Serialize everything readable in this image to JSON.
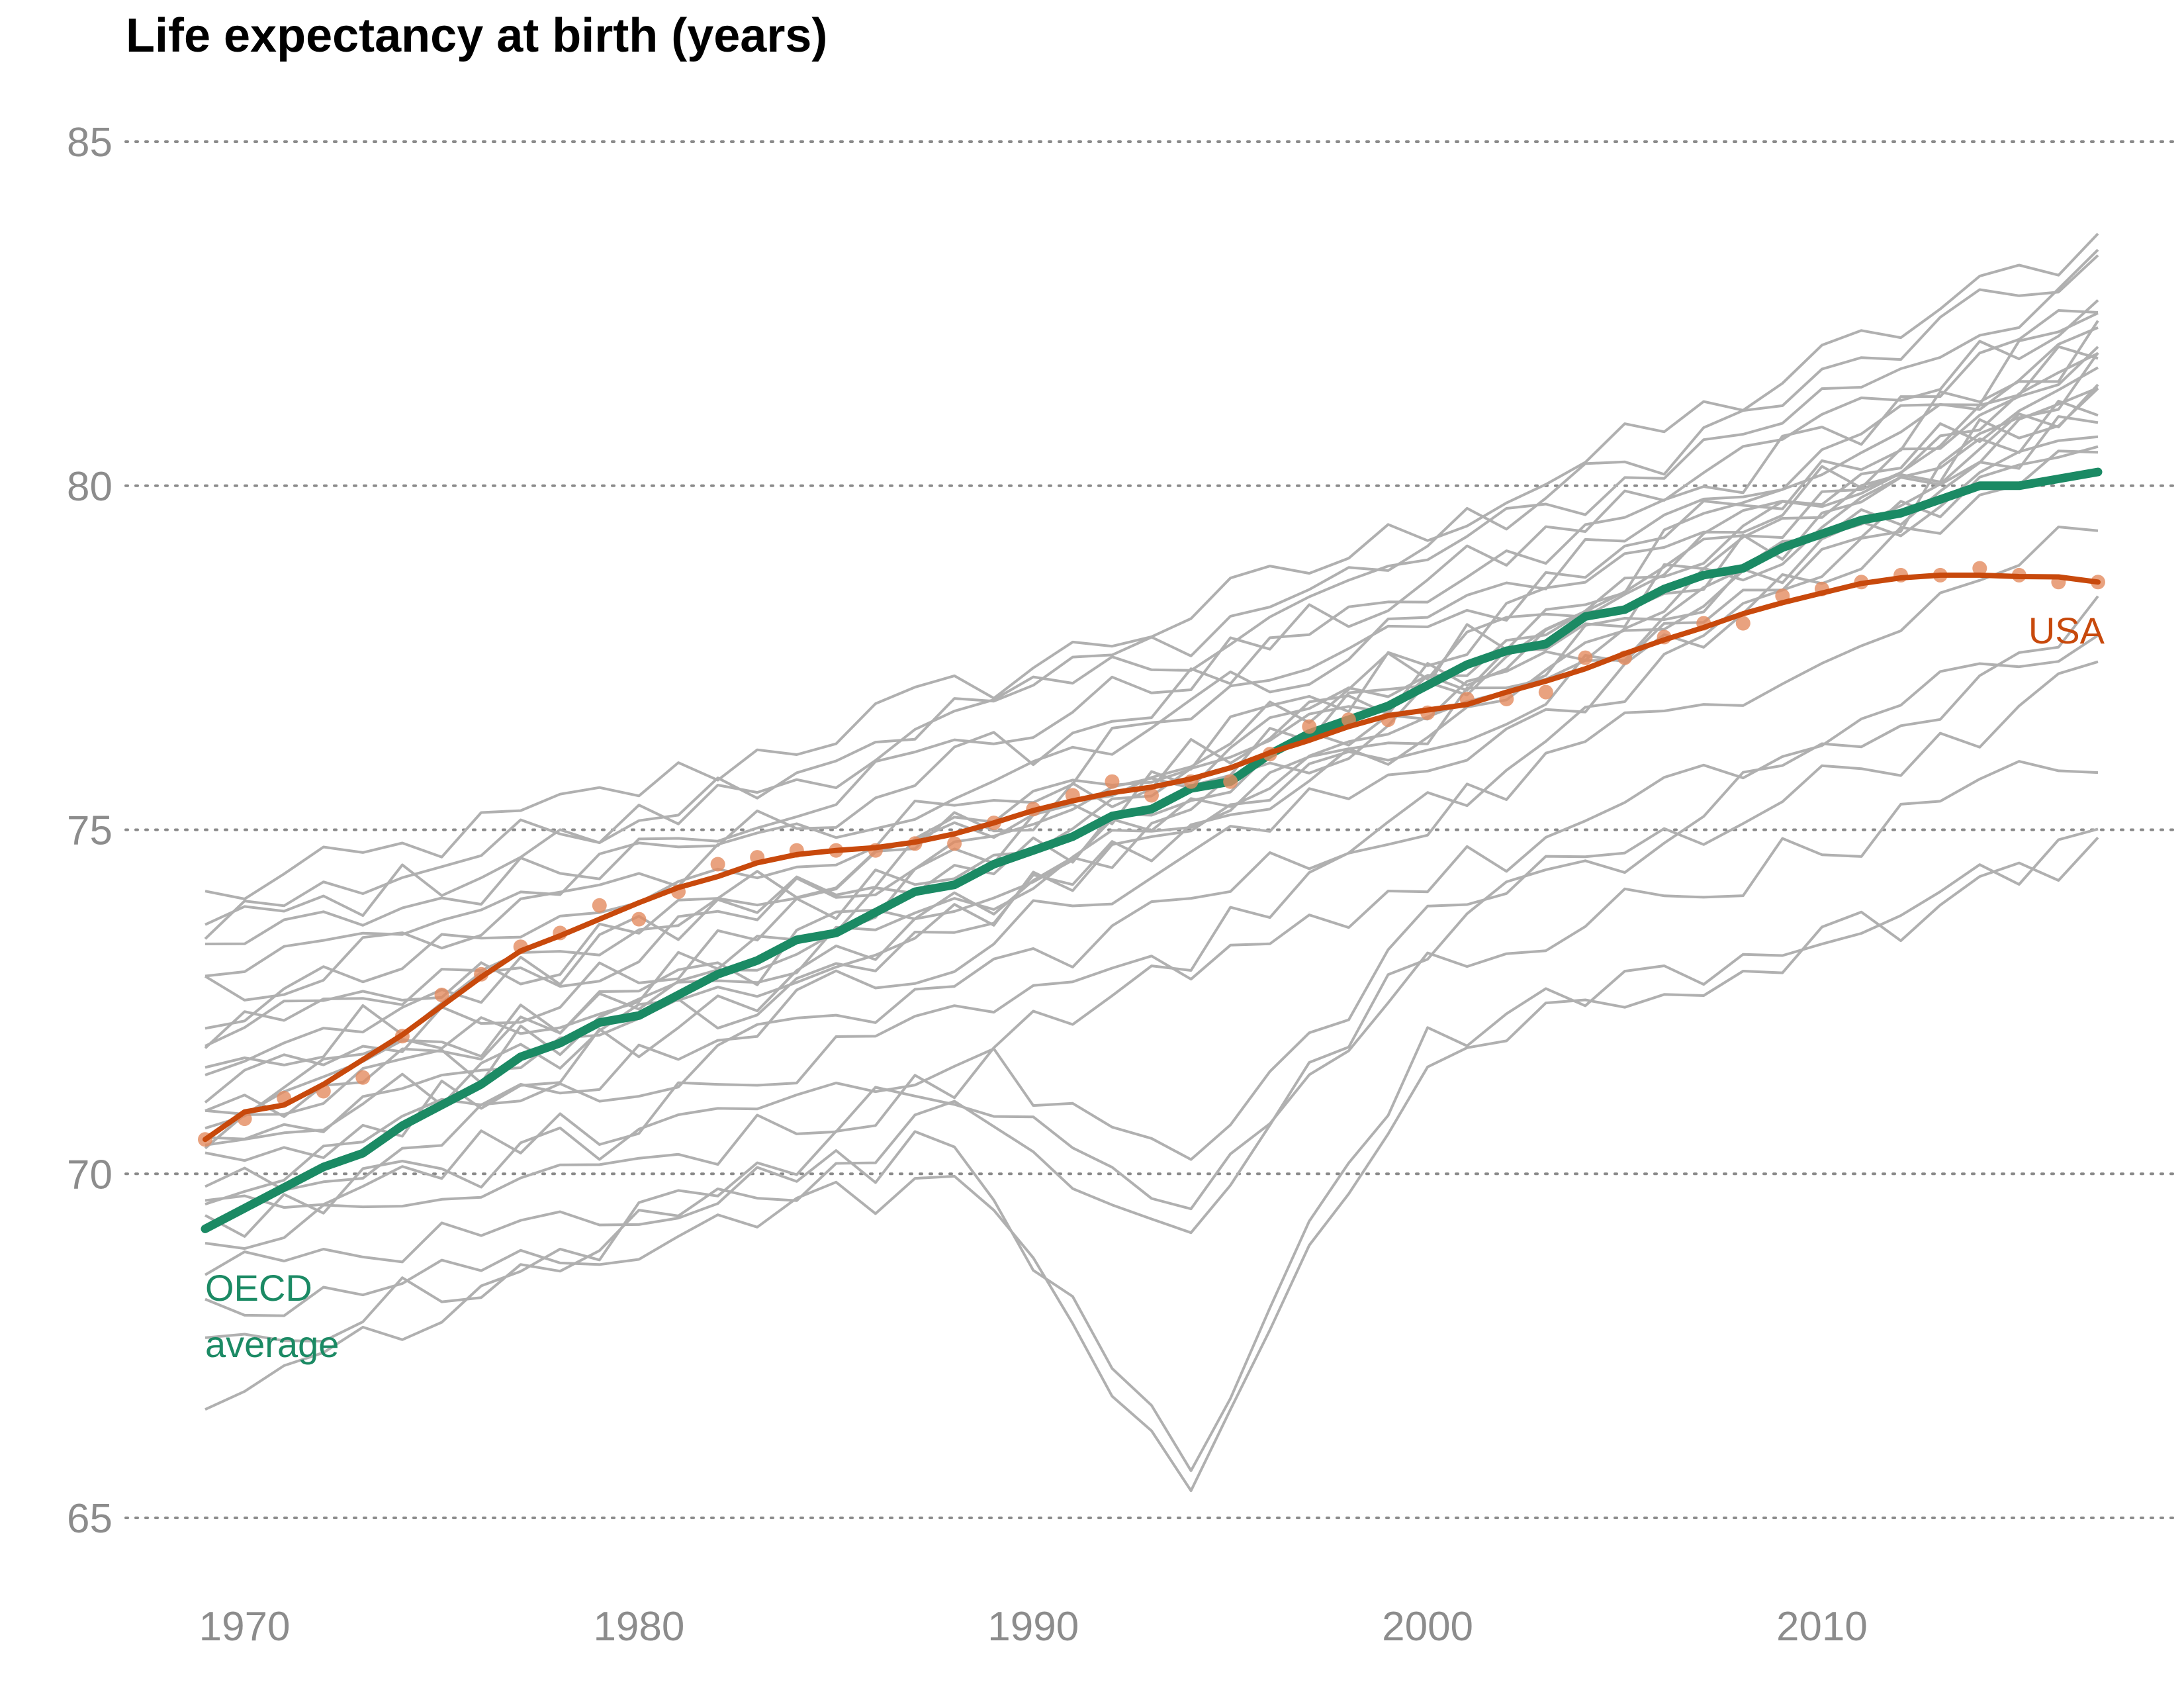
{
  "chart_data": {
    "type": "line",
    "title": "Life expectancy at birth (years)",
    "xlabel": "",
    "ylabel": "",
    "xlim": [
      1969,
      2017
    ],
    "ylim": [
      65,
      85
    ],
    "x_ticks": [
      1970,
      1980,
      1990,
      2000,
      2010
    ],
    "y_ticks": [
      65,
      70,
      75,
      80,
      85
    ],
    "grid": "horizontal dotted",
    "legend": "direct labels",
    "colors": {
      "countries": "#b0b0b0",
      "oecd": "#1b8a64",
      "usa": "#c8490c",
      "usa_points": "#e38b5f"
    },
    "labels": {
      "usa": "USA",
      "oecd_line1": "OECD",
      "oecd_line2": "average"
    },
    "series": [
      {
        "name": "OECD average",
        "x": [
          1969,
          1970,
          1971,
          1972,
          1973,
          1974,
          1975,
          1976,
          1977,
          1978,
          1979,
          1980,
          1981,
          1982,
          1983,
          1984,
          1985,
          1986,
          1987,
          1988,
          1989,
          1990,
          1991,
          1992,
          1993,
          1994,
          1995,
          1996,
          1997,
          1998,
          1999,
          2000,
          2001,
          2002,
          2003,
          2004,
          2005,
          2006,
          2007,
          2008,
          2009,
          2010,
          2011,
          2012,
          2013,
          2014,
          2015,
          2016,
          2017
        ],
        "values": [
          69.2,
          69.5,
          69.8,
          70.1,
          70.3,
          70.7,
          71.0,
          71.3,
          71.7,
          71.9,
          72.2,
          72.3,
          72.6,
          72.9,
          73.1,
          73.4,
          73.5,
          73.8,
          74.1,
          74.2,
          74.5,
          74.7,
          74.9,
          75.2,
          75.3,
          75.6,
          75.7,
          76.1,
          76.4,
          76.6,
          76.8,
          77.1,
          77.4,
          77.6,
          77.7,
          78.1,
          78.2,
          78.5,
          78.7,
          78.8,
          79.1,
          79.3,
          79.5,
          79.6,
          79.8,
          80.0,
          80.0,
          80.1,
          80.2
        ]
      },
      {
        "name": "USA",
        "x": [
          1969,
          1970,
          1971,
          1972,
          1973,
          1974,
          1975,
          1976,
          1977,
          1978,
          1979,
          1980,
          1981,
          1982,
          1983,
          1984,
          1985,
          1986,
          1987,
          1988,
          1989,
          1990,
          1991,
          1992,
          1993,
          1994,
          1995,
          1996,
          1997,
          1998,
          1999,
          2000,
          2001,
          2002,
          2003,
          2004,
          2005,
          2006,
          2007,
          2008,
          2009,
          2010,
          2011,
          2012,
          2013,
          2014,
          2015,
          2016,
          2017
        ],
        "values": [
          70.5,
          70.8,
          71.1,
          71.2,
          71.4,
          72.0,
          72.6,
          72.9,
          73.3,
          73.5,
          73.9,
          73.7,
          74.1,
          74.5,
          74.6,
          74.7,
          74.7,
          74.7,
          74.8,
          74.8,
          75.1,
          75.3,
          75.5,
          75.7,
          75.5,
          75.7,
          75.7,
          76.1,
          76.5,
          76.6,
          76.6,
          76.7,
          76.9,
          76.9,
          77.0,
          77.5,
          77.5,
          77.8,
          78.0,
          78.0,
          78.4,
          78.5,
          78.6,
          78.7,
          78.7,
          78.8,
          78.7,
          78.6,
          78.6
        ]
      }
    ]
  }
}
